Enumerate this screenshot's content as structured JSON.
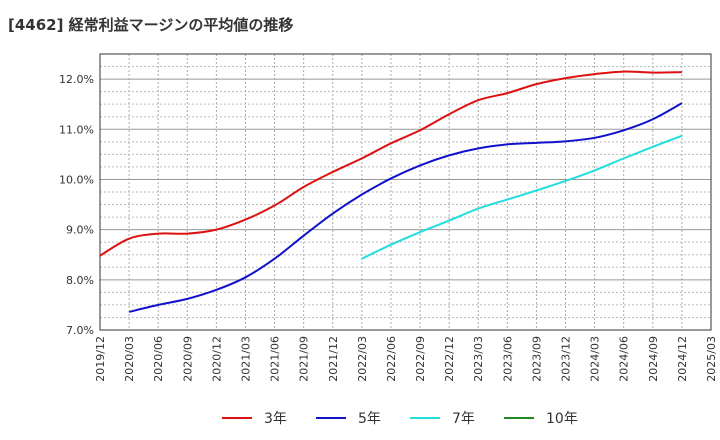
{
  "title": "[4462]  経常利益マージンの平均値の推移",
  "chart_data": {
    "type": "line",
    "title": "[4462]  経常利益マージンの平均値の推移",
    "xlabel": "",
    "ylabel": "",
    "x_ticks": [
      "2019/12",
      "2020/03",
      "2020/06",
      "2020/09",
      "2020/12",
      "2021/03",
      "2021/06",
      "2021/09",
      "2021/12",
      "2022/03",
      "2022/06",
      "2022/09",
      "2022/12",
      "2023/03",
      "2023/06",
      "2023/09",
      "2023/12",
      "2024/03",
      "2024/06",
      "2024/09",
      "2024/12",
      "2025/03"
    ],
    "y_ticks": [
      "7.0%",
      "8.0%",
      "9.0%",
      "10.0%",
      "11.0%",
      "12.0%"
    ],
    "ylim": [
      7.0,
      12.5
    ],
    "grid": true,
    "legend_position": "bottom",
    "series": [
      {
        "name": "3年",
        "color": "#dd1111",
        "x": [
          "2019/12",
          "2020/03",
          "2020/06",
          "2020/09",
          "2020/12",
          "2021/03",
          "2021/06",
          "2021/09",
          "2021/12",
          "2022/03",
          "2022/06",
          "2022/09",
          "2022/12",
          "2023/03",
          "2023/06",
          "2023/09",
          "2023/12",
          "2024/03",
          "2024/06",
          "2024/09",
          "2024/12"
        ],
        "values": [
          8.48,
          8.82,
          8.92,
          8.92,
          9.0,
          9.2,
          9.48,
          9.85,
          10.15,
          10.42,
          10.72,
          10.98,
          11.3,
          11.58,
          11.72,
          11.9,
          12.02,
          12.1,
          12.15,
          12.13,
          12.14
        ]
      },
      {
        "name": "5年",
        "color": "#1111cc",
        "x": [
          "2020/03",
          "2020/06",
          "2020/09",
          "2020/12",
          "2021/03",
          "2021/06",
          "2021/09",
          "2021/12",
          "2022/03",
          "2022/06",
          "2022/09",
          "2022/12",
          "2023/03",
          "2023/06",
          "2023/09",
          "2023/12",
          "2024/03",
          "2024/06",
          "2024/09",
          "2024/12"
        ],
        "values": [
          7.36,
          7.5,
          7.62,
          7.8,
          8.05,
          8.42,
          8.88,
          9.32,
          9.7,
          10.02,
          10.28,
          10.48,
          10.62,
          10.7,
          10.73,
          10.76,
          10.83,
          10.98,
          11.2,
          11.52
        ]
      },
      {
        "name": "7年",
        "color": "#22dddd",
        "x": [
          "2022/03",
          "2022/06",
          "2022/09",
          "2022/12",
          "2023/03",
          "2023/06",
          "2023/09",
          "2023/12",
          "2024/03",
          "2024/06",
          "2024/09",
          "2024/12"
        ],
        "values": [
          8.42,
          8.7,
          8.95,
          9.18,
          9.42,
          9.6,
          9.78,
          9.97,
          10.18,
          10.42,
          10.65,
          10.87
        ]
      },
      {
        "name": "10年",
        "color": "#228822",
        "x": [],
        "values": []
      }
    ]
  }
}
